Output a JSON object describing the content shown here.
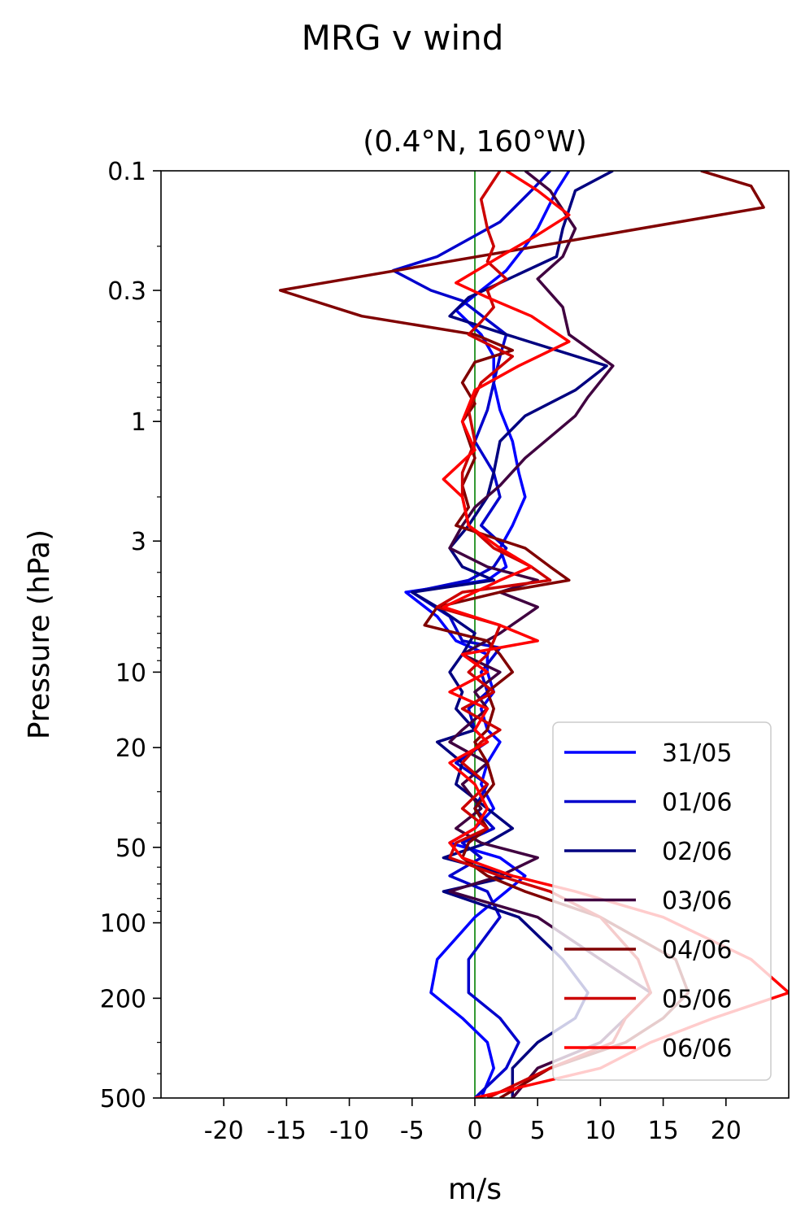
{
  "figure": {
    "suptitle": "MRG v wind"
  },
  "chart_data": {
    "type": "line",
    "title": "(0.4°N, 160°W)",
    "xlabel": "m/s",
    "ylabel": "Pressure (hPa)",
    "xlim": [
      -25,
      25
    ],
    "ylim": [
      500,
      0.1
    ],
    "yscale": "log",
    "xticks": [
      -20,
      -15,
      -10,
      -5,
      0,
      5,
      10,
      15,
      20
    ],
    "xtick_labels": [
      "-20",
      "-15",
      "-10",
      "-5",
      "0",
      "5",
      "10",
      "15",
      "20"
    ],
    "yticks": [
      0.1,
      0.3,
      1,
      3,
      10,
      20,
      50,
      100,
      200,
      500
    ],
    "ytick_labels": [
      "0.1",
      "0.3",
      "1",
      "3",
      "10",
      "20",
      "50",
      "100",
      "200",
      "500"
    ],
    "zero_line": {
      "x": 0,
      "color": "#008000"
    },
    "grid": false,
    "legend": "bottom-right",
    "series": [
      {
        "name": "31/05",
        "color": "#0000ff",
        "points": [
          [
            7.5,
            0.1
          ],
          [
            6.5,
            0.12
          ],
          [
            5,
            0.17
          ],
          [
            4,
            0.2
          ],
          [
            2.5,
            0.25
          ],
          [
            0.5,
            0.3
          ],
          [
            -1.5,
            0.36
          ],
          [
            0.5,
            0.45
          ],
          [
            1.5,
            0.55
          ],
          [
            1.5,
            0.7
          ],
          [
            2,
            0.9
          ],
          [
            3,
            1.2
          ],
          [
            3.5,
            1.6
          ],
          [
            4,
            2
          ],
          [
            3,
            2.6
          ],
          [
            2,
            3.2
          ],
          [
            2.5,
            3.8
          ],
          [
            1,
            4.3
          ],
          [
            -5.5,
            4.8
          ],
          [
            -3,
            6
          ],
          [
            -1.5,
            7.5
          ],
          [
            1,
            8.5
          ],
          [
            1,
            10
          ],
          [
            1.5,
            12
          ],
          [
            0.5,
            14
          ],
          [
            1,
            17
          ],
          [
            2,
            19
          ],
          [
            1,
            23
          ],
          [
            0.5,
            28
          ],
          [
            1.5,
            35
          ],
          [
            0,
            42
          ],
          [
            -2,
            48
          ],
          [
            2,
            55
          ],
          [
            4,
            65
          ],
          [
            2.5,
            75
          ],
          [
            0,
            95
          ],
          [
            -3,
            140
          ],
          [
            -3.5,
            190
          ],
          [
            -1,
            240
          ],
          [
            1,
            300
          ],
          [
            1.5,
            380
          ],
          [
            0.5,
            500
          ]
        ]
      },
      {
        "name": "01/06",
        "color": "#0000cc",
        "points": [
          [
            6,
            0.1
          ],
          [
            4.5,
            0.12
          ],
          [
            2,
            0.16
          ],
          [
            -3,
            0.22
          ],
          [
            -6.5,
            0.25
          ],
          [
            -3.5,
            0.3
          ],
          [
            -1,
            0.33
          ],
          [
            2.5,
            0.45
          ],
          [
            2,
            0.55
          ],
          [
            1.5,
            0.7
          ],
          [
            1,
            0.9
          ],
          [
            0,
            1.2
          ],
          [
            1.5,
            1.6
          ],
          [
            2,
            2
          ],
          [
            0.5,
            2.6
          ],
          [
            2.5,
            3.2
          ],
          [
            1.5,
            3.8
          ],
          [
            -0.5,
            4.3
          ],
          [
            -5,
            4.8
          ],
          [
            -2,
            6
          ],
          [
            -1,
            7.5
          ],
          [
            2,
            8
          ],
          [
            0.5,
            10
          ],
          [
            1,
            12
          ],
          [
            -0.5,
            14
          ],
          [
            0,
            17
          ],
          [
            1,
            19
          ],
          [
            -1.5,
            23
          ],
          [
            1,
            28
          ],
          [
            0,
            35
          ],
          [
            1.5,
            42
          ],
          [
            -1,
            48
          ],
          [
            0.5,
            55
          ],
          [
            -2,
            65
          ],
          [
            1,
            75
          ],
          [
            2,
            95
          ],
          [
            -0.5,
            140
          ],
          [
            -0.5,
            190
          ],
          [
            2,
            240
          ],
          [
            3.5,
            300
          ],
          [
            2.5,
            380
          ],
          [
            0,
            500
          ]
        ]
      },
      {
        "name": "02/06",
        "color": "#000080",
        "points": [
          [
            11,
            0.1
          ],
          [
            8,
            0.12
          ],
          [
            7,
            0.17
          ],
          [
            6.5,
            0.22
          ],
          [
            2,
            0.28
          ],
          [
            -0.5,
            0.32
          ],
          [
            -2,
            0.38
          ],
          [
            2.5,
            0.45
          ],
          [
            10.5,
            0.6
          ],
          [
            8,
            0.75
          ],
          [
            4,
            0.95
          ],
          [
            2,
            1.2
          ],
          [
            1.5,
            1.6
          ],
          [
            1,
            2
          ],
          [
            -0.5,
            2.6
          ],
          [
            -2,
            3.2
          ],
          [
            -1,
            3.8
          ],
          [
            1.5,
            4.3
          ],
          [
            -5,
            4.8
          ],
          [
            -3,
            5.5
          ],
          [
            0,
            7
          ],
          [
            -1,
            8.5
          ],
          [
            -2,
            10
          ],
          [
            -1,
            12
          ],
          [
            -1.5,
            14
          ],
          [
            0,
            17
          ],
          [
            -3,
            19
          ],
          [
            -1,
            23
          ],
          [
            -1.5,
            28
          ],
          [
            1,
            35
          ],
          [
            3,
            42
          ],
          [
            1,
            48
          ],
          [
            -2.5,
            55
          ],
          [
            3,
            65
          ],
          [
            -2.5,
            75
          ],
          [
            3.5,
            95
          ],
          [
            7,
            140
          ],
          [
            9,
            190
          ],
          [
            8,
            240
          ],
          [
            5,
            300
          ],
          [
            3,
            380
          ],
          [
            3,
            500
          ]
        ]
      },
      {
        "name": "03/06",
        "color": "#400040",
        "points": [
          [
            4,
            0.1
          ],
          [
            6,
            0.12
          ],
          [
            8,
            0.17
          ],
          [
            7,
            0.22
          ],
          [
            5,
            0.27
          ],
          [
            7,
            0.35
          ],
          [
            7.5,
            0.45
          ],
          [
            11,
            0.6
          ],
          [
            9,
            0.8
          ],
          [
            8,
            0.95
          ],
          [
            4,
            1.4
          ],
          [
            2,
            1.8
          ],
          [
            0,
            2.2
          ],
          [
            -1,
            2.6
          ],
          [
            -2,
            3.2
          ],
          [
            1,
            3.8
          ],
          [
            5,
            4.3
          ],
          [
            2,
            4.8
          ],
          [
            5,
            5.5
          ],
          [
            2,
            7
          ],
          [
            -1,
            8.5
          ],
          [
            2,
            10
          ],
          [
            0,
            12
          ],
          [
            1,
            14
          ],
          [
            -1,
            17
          ],
          [
            -2,
            19
          ],
          [
            1,
            23
          ],
          [
            -1,
            28
          ],
          [
            0.5,
            35
          ],
          [
            -1.5,
            42
          ],
          [
            0.5,
            48
          ],
          [
            5,
            55
          ],
          [
            2,
            65
          ],
          [
            -2,
            75
          ],
          [
            5,
            95
          ],
          [
            10,
            140
          ],
          [
            14,
            190
          ],
          [
            12,
            240
          ],
          [
            10,
            300
          ],
          [
            5,
            380
          ],
          [
            3,
            500
          ]
        ]
      },
      {
        "name": "04/06",
        "color": "#800000",
        "points": [
          [
            18,
            0.1
          ],
          [
            22,
            0.115
          ],
          [
            23,
            0.14
          ],
          [
            5,
            0.2
          ],
          [
            -15.5,
            0.3
          ],
          [
            -9,
            0.38
          ],
          [
            0,
            0.45
          ],
          [
            3,
            0.52
          ],
          [
            0,
            0.58
          ],
          [
            -1,
            0.7
          ],
          [
            0,
            0.85
          ],
          [
            -1,
            1
          ],
          [
            0,
            1.4
          ],
          [
            -1,
            1.8
          ],
          [
            -0.5,
            2.2
          ],
          [
            -1.5,
            2.6
          ],
          [
            4,
            3.2
          ],
          [
            6,
            3.8
          ],
          [
            7.5,
            4.3
          ],
          [
            2,
            4.8
          ],
          [
            -3,
            5.5
          ],
          [
            -4,
            6.5
          ],
          [
            1,
            7.5
          ],
          [
            2,
            8.5
          ],
          [
            3,
            10
          ],
          [
            1,
            12
          ],
          [
            1.5,
            14
          ],
          [
            1,
            17
          ],
          [
            0,
            19
          ],
          [
            1,
            23
          ],
          [
            1.5,
            28
          ],
          [
            0,
            35
          ],
          [
            1,
            42
          ],
          [
            -0.5,
            48
          ],
          [
            -1,
            55
          ],
          [
            1,
            65
          ],
          [
            4,
            75
          ],
          [
            10,
            95
          ],
          [
            16,
            140
          ],
          [
            17,
            190
          ],
          [
            15,
            240
          ],
          [
            12,
            300
          ],
          [
            6,
            380
          ],
          [
            2,
            500
          ]
        ]
      },
      {
        "name": "05/06",
        "color": "#cc0000",
        "points": [
          [
            2,
            0.1
          ],
          [
            0.5,
            0.13
          ],
          [
            1,
            0.17
          ],
          [
            1.5,
            0.2
          ],
          [
            1,
            0.23
          ],
          [
            2.5,
            0.27
          ],
          [
            1,
            0.3
          ],
          [
            1.5,
            0.35
          ],
          [
            0.5,
            0.4
          ],
          [
            -0.5,
            0.45
          ],
          [
            3,
            0.55
          ],
          [
            0.5,
            0.7
          ],
          [
            -0.5,
            0.9
          ],
          [
            0,
            1.2
          ],
          [
            -1,
            1.6
          ],
          [
            -1,
            2
          ],
          [
            -0.5,
            2.6
          ],
          [
            1.5,
            3.2
          ],
          [
            4.5,
            3.8
          ],
          [
            6,
            4.3
          ],
          [
            -1,
            4.8
          ],
          [
            -3,
            5.5
          ],
          [
            2,
            6.5
          ],
          [
            1.5,
            7.5
          ],
          [
            1,
            8.5
          ],
          [
            -0.5,
            10
          ],
          [
            1.5,
            12
          ],
          [
            -1,
            14
          ],
          [
            2,
            17
          ],
          [
            0.5,
            19
          ],
          [
            -1,
            23
          ],
          [
            1,
            28
          ],
          [
            -1,
            35
          ],
          [
            1,
            42
          ],
          [
            -1.5,
            48
          ],
          [
            -2,
            55
          ],
          [
            2,
            65
          ],
          [
            6,
            75
          ],
          [
            10,
            95
          ],
          [
            13,
            140
          ],
          [
            14,
            190
          ],
          [
            12,
            240
          ],
          [
            11,
            300
          ],
          [
            6,
            380
          ],
          [
            1,
            500
          ]
        ]
      },
      {
        "name": "06/06",
        "color": "#ff0000",
        "points": [
          [
            2.5,
            0.1
          ],
          [
            5,
            0.12
          ],
          [
            7.5,
            0.15
          ],
          [
            5,
            0.18
          ],
          [
            2,
            0.22
          ],
          [
            -1.5,
            0.28
          ],
          [
            1,
            0.32
          ],
          [
            4.5,
            0.38
          ],
          [
            7.5,
            0.48
          ],
          [
            3.5,
            0.6
          ],
          [
            0,
            0.75
          ],
          [
            -1,
            1
          ],
          [
            0,
            1.3
          ],
          [
            -2.5,
            1.7
          ],
          [
            -1,
            2
          ],
          [
            -0.5,
            2.6
          ],
          [
            2,
            3.2
          ],
          [
            4.5,
            3.8
          ],
          [
            2,
            4.3
          ],
          [
            0,
            4.8
          ],
          [
            -2.5,
            5.5
          ],
          [
            2,
            6.5
          ],
          [
            5,
            7.5
          ],
          [
            -1,
            8.5
          ],
          [
            1,
            10
          ],
          [
            -2,
            12
          ],
          [
            1,
            14
          ],
          [
            0,
            17
          ],
          [
            1,
            19
          ],
          [
            -2,
            23
          ],
          [
            0,
            28
          ],
          [
            1,
            35
          ],
          [
            0,
            42
          ],
          [
            -2,
            48
          ],
          [
            -1,
            55
          ],
          [
            3,
            65
          ],
          [
            8,
            75
          ],
          [
            15,
            95
          ],
          [
            22,
            140
          ],
          [
            25,
            190
          ],
          [
            19,
            240
          ],
          [
            14,
            300
          ],
          [
            10,
            380
          ],
          [
            0,
            500
          ]
        ]
      }
    ]
  }
}
